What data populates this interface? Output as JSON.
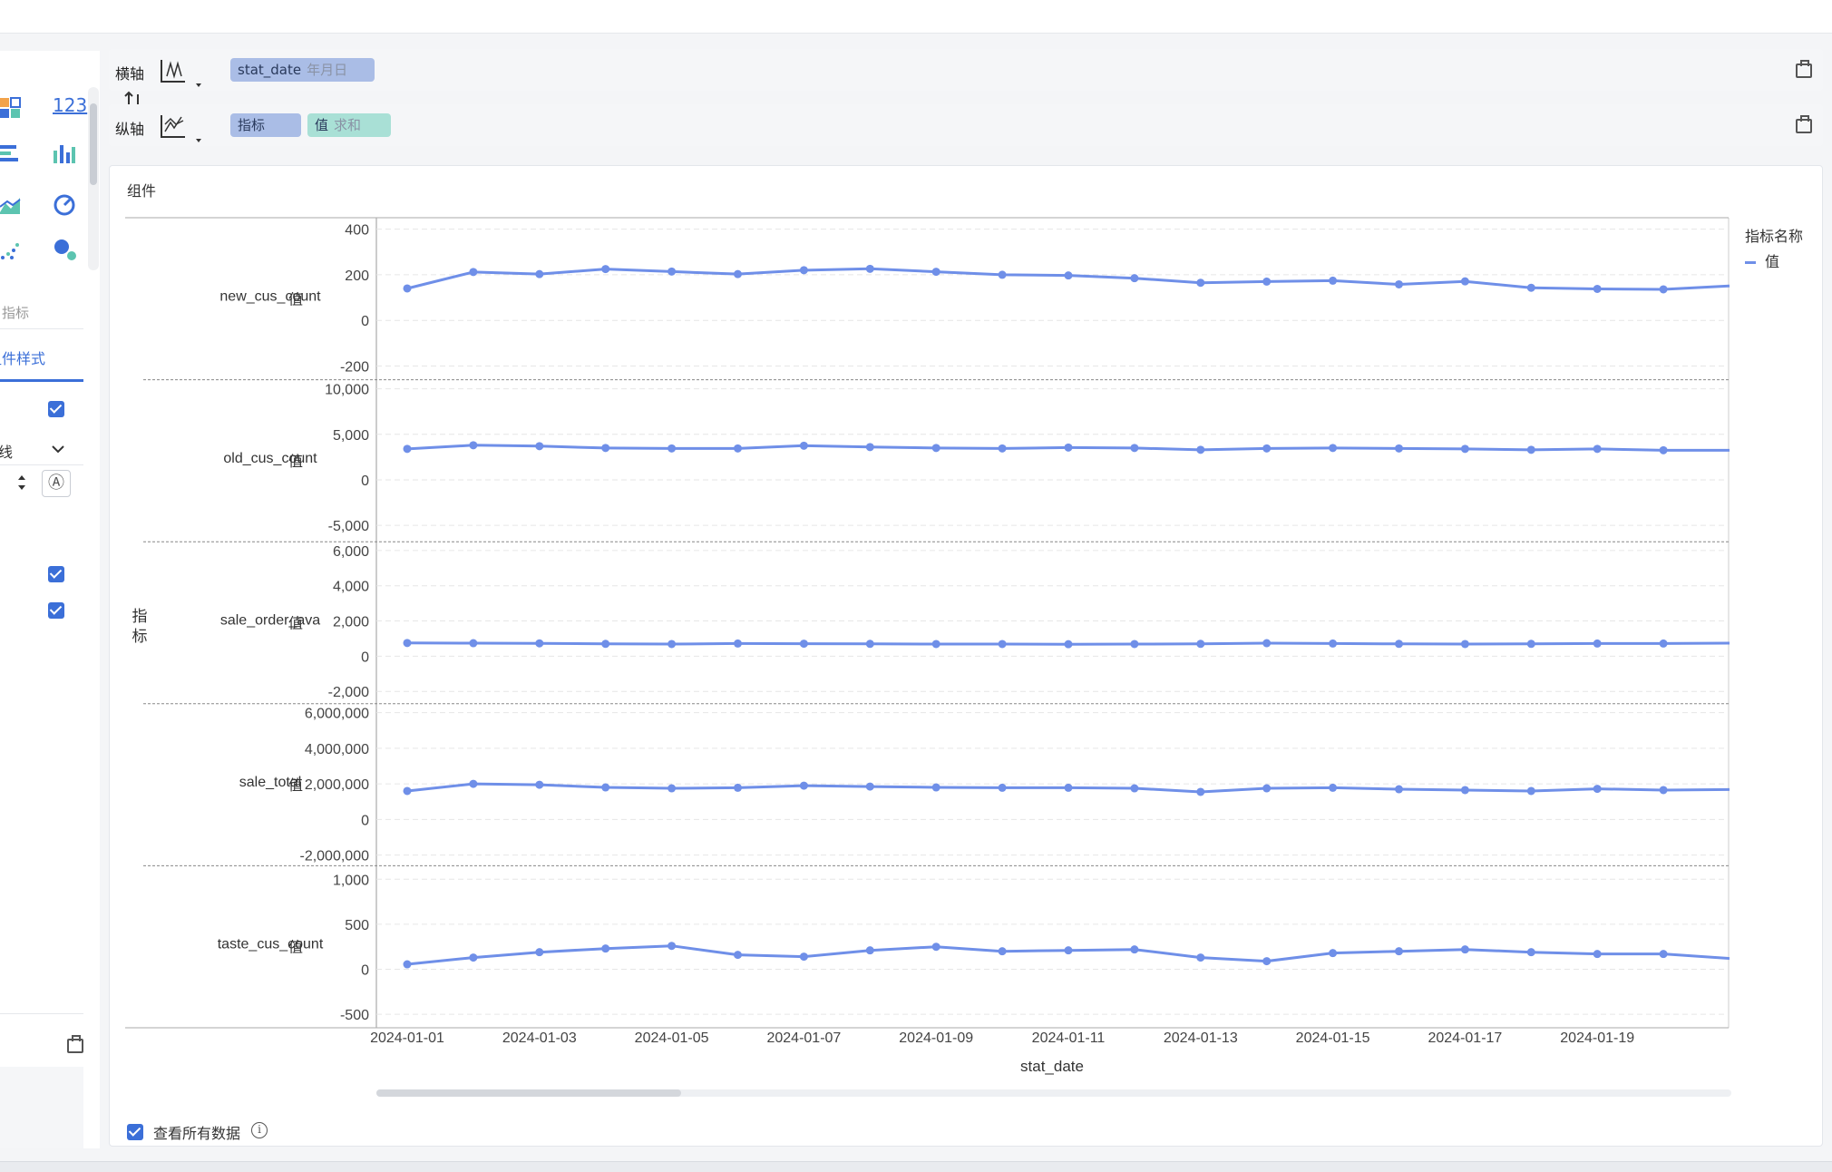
{
  "axes_config": {
    "x_axis": {
      "label": "横轴",
      "field": "stat_date",
      "granularity": "年月日"
    },
    "y_axis": {
      "label": "纵轴",
      "measure_group": "指标",
      "value_field": "值",
      "aggregation": "求和"
    },
    "swap_icon": "swap-vertical-icon"
  },
  "left_panel": {
    "section_label": "指标",
    "active_tab": "组件样式",
    "line_type_value": "线",
    "icons": [
      "grid-chart-icon",
      "number-123-icon",
      "bar-horizontal-icon",
      "bar-vertical-icon",
      "area-chart-icon",
      "gauge-icon",
      "scatter-icon",
      "bubble-icon"
    ],
    "number_icon_text": "123",
    "letter_icon_text": "Ⓐ"
  },
  "panel": {
    "title": "组件",
    "footer_checkbox_label": "查看所有数据",
    "info_icon_text": "i"
  },
  "chart_data": {
    "type": "line",
    "row_axis_label": "指标",
    "y_label": "值",
    "xlabel": "stat_date",
    "legend_title": "指标名称",
    "legend_entry": "值",
    "color": "#6f8fe8",
    "x": [
      "2024-01-01",
      "2024-01-02",
      "2024-01-03",
      "2024-01-04",
      "2024-01-05",
      "2024-01-06",
      "2024-01-07",
      "2024-01-08",
      "2024-01-09",
      "2024-01-10",
      "2024-01-11",
      "2024-01-12",
      "2024-01-13",
      "2024-01-14",
      "2024-01-15",
      "2024-01-16",
      "2024-01-17",
      "2024-01-18",
      "2024-01-19",
      "2024-01-20",
      "2024-01-21"
    ],
    "x_tick_labels": [
      "2024-01-01",
      "2024-01-03",
      "2024-01-05",
      "2024-01-07",
      "2024-01-09",
      "2024-01-11",
      "2024-01-13",
      "2024-01-15",
      "2024-01-17",
      "2024-01-19"
    ],
    "facets": [
      {
        "name": "new_cus_count",
        "ylim": [
          -260,
          450
        ],
        "ticks": [
          400,
          200,
          0,
          -200
        ],
        "tick_labels": [
          "400",
          "200",
          "0",
          "-200"
        ],
        "values": [
          140,
          212,
          203,
          225,
          214,
          203,
          220,
          226,
          213,
          200,
          197,
          185,
          165,
          170,
          174,
          158,
          171,
          143,
          138,
          136,
          151
        ]
      },
      {
        "name": "old_cus_count",
        "ylim": [
          -6800,
          11000
        ],
        "ticks": [
          10000,
          5000,
          0,
          -5000
        ],
        "tick_labels": [
          "10,000",
          "5,000",
          "0",
          "-5,000"
        ],
        "values": [
          3400,
          3800,
          3700,
          3500,
          3450,
          3450,
          3750,
          3600,
          3500,
          3450,
          3550,
          3500,
          3300,
          3450,
          3500,
          3450,
          3400,
          3300,
          3400,
          3250,
          3250
        ]
      },
      {
        "name": "sale_order_ava",
        "ylim": [
          -2700,
          6500
        ],
        "ticks": [
          6000,
          4000,
          2000,
          0,
          -2000
        ],
        "tick_labels": [
          "6,000",
          "4,000",
          "2,000",
          "0",
          "-2,000"
        ],
        "values": [
          750,
          740,
          730,
          700,
          690,
          720,
          710,
          700,
          690,
          690,
          680,
          690,
          700,
          740,
          720,
          700,
          690,
          700,
          720,
          720,
          740
        ]
      },
      {
        "name": "sale_total",
        "ylim": [
          -2600000,
          6500000
        ],
        "ticks": [
          6000000,
          4000000,
          2000000,
          0,
          -2000000
        ],
        "tick_labels": [
          "6,000,000",
          "4,000,000",
          "2,000,000",
          "0",
          "-2,000,000"
        ],
        "values": [
          1600000,
          2000000,
          1950000,
          1800000,
          1750000,
          1780000,
          1900000,
          1850000,
          1800000,
          1780000,
          1780000,
          1750000,
          1550000,
          1750000,
          1780000,
          1700000,
          1650000,
          1600000,
          1720000,
          1650000,
          1680000
        ]
      },
      {
        "name": "taste_cus_count",
        "ylim": [
          -650,
          1150
        ],
        "ticks": [
          1000,
          500,
          0,
          -500
        ],
        "tick_labels": [
          "1,000",
          "500",
          "0",
          "-500"
        ],
        "values": [
          55,
          130,
          190,
          230,
          260,
          160,
          140,
          210,
          250,
          200,
          210,
          220,
          130,
          90,
          180,
          200,
          220,
          190,
          170,
          170,
          120
        ]
      }
    ]
  }
}
